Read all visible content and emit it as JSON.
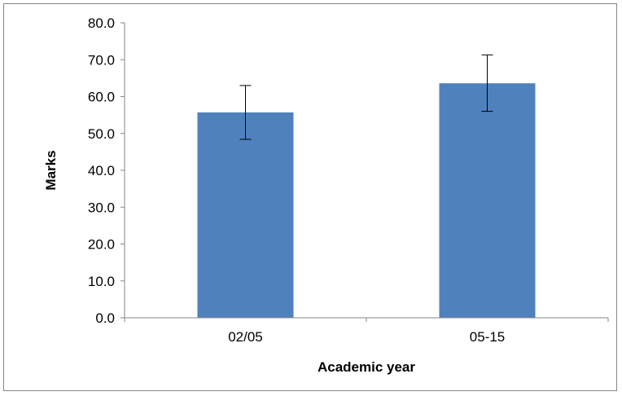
{
  "chart_data": {
    "type": "bar",
    "title": "",
    "xlabel": "Academic year",
    "ylabel": "Marks",
    "categories": [
      "02/05",
      "05-15"
    ],
    "values": [
      55.7,
      63.6
    ],
    "error_bars": [
      [
        48.4,
        63.0
      ],
      [
        56.0,
        71.3
      ]
    ],
    "ylim": [
      0,
      80
    ],
    "yticks": [
      "0.0",
      "10.0",
      "20.0",
      "30.0",
      "40.0",
      "50.0",
      "60.0",
      "70.0",
      "80.0"
    ],
    "grid": false,
    "legend": "none",
    "bar_color": "#4F81BD"
  }
}
